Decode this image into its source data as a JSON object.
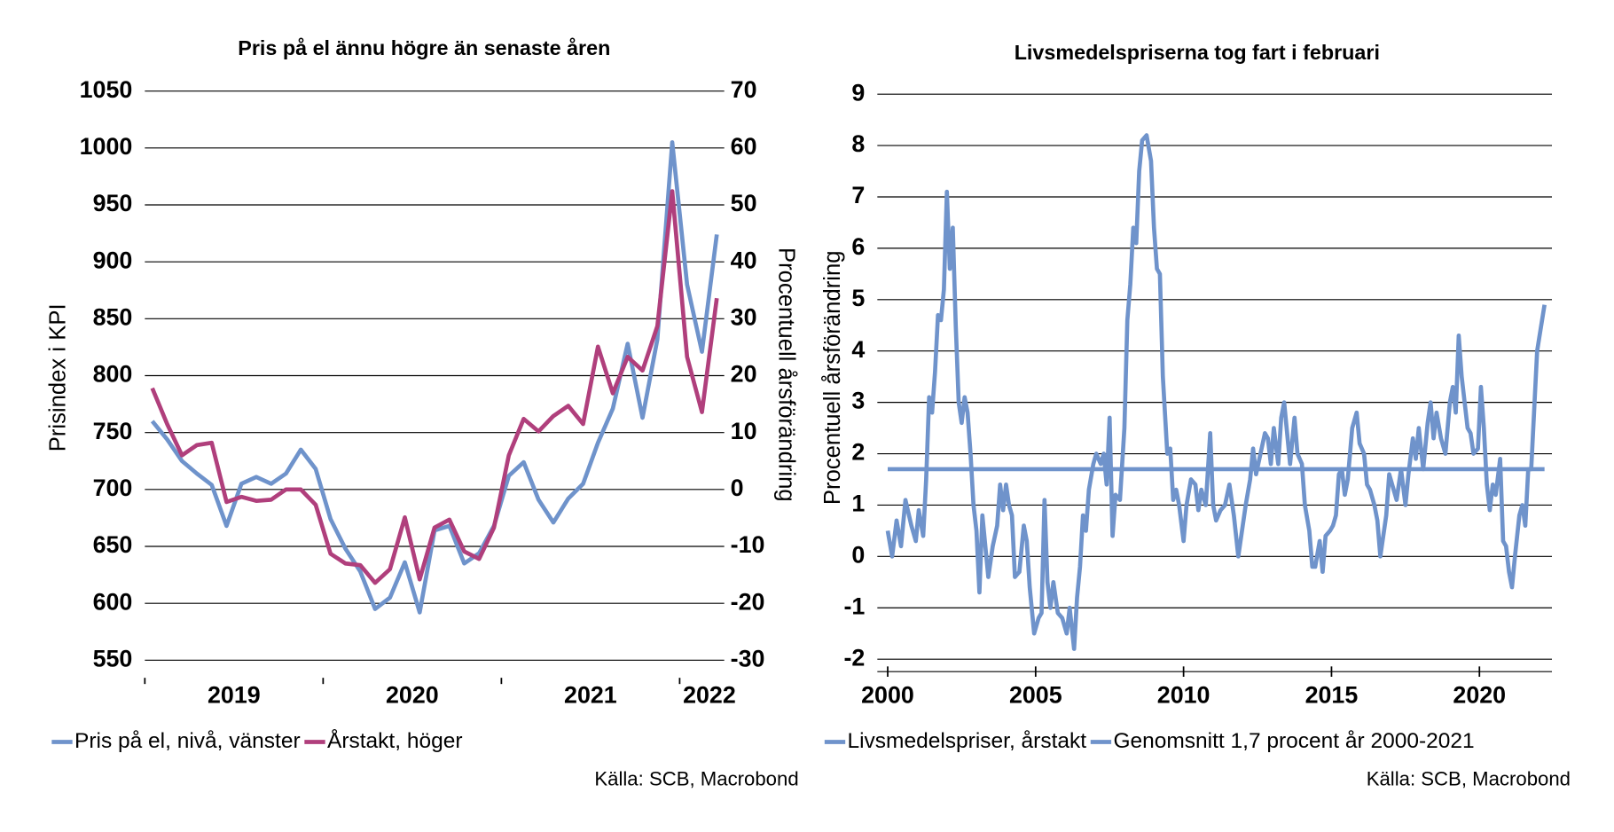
{
  "chart_data": [
    {
      "type": "line",
      "title": "Pris på el ännu högre än senaste åren",
      "categories": [
        null,
        null,
        null,
        null,
        null,
        "2019",
        null,
        null,
        null,
        null,
        null,
        null,
        null,
        null,
        null,
        null,
        null,
        "2020",
        null,
        null,
        null,
        null,
        null,
        null,
        null,
        null,
        null,
        null,
        null,
        "2021",
        null,
        null,
        null,
        null,
        null,
        null,
        null,
        "2022",
        null
      ],
      "ylabel": "Prisindex i KPI",
      "y2label": "Procentuell årsförändring",
      "ylim": [
        550,
        1050
      ],
      "yticks": [
        550,
        600,
        650,
        700,
        750,
        800,
        850,
        900,
        950,
        1000,
        1050
      ],
      "y2lim": [
        -30,
        70
      ],
      "y2ticks": [
        -30,
        -20,
        -10,
        0,
        10,
        20,
        30,
        40,
        50,
        60,
        70
      ],
      "grid": true,
      "series": [
        {
          "name": "Pris på el, nivå, vänster",
          "color": "#6f93cb",
          "values": [
            760,
            744,
            725,
            714,
            704,
            668,
            705,
            711,
            705,
            714,
            735,
            718,
            674,
            648,
            628,
            595,
            605,
            636,
            592,
            664,
            668,
            635,
            644,
            668,
            712,
            724,
            691,
            671,
            692,
            705,
            741,
            771,
            828,
            763,
            832,
            1005,
            880,
            821,
            924
          ]
        },
        {
          "name": "Årstakt, höger",
          "color": "#b03f7c",
          "axis": "y2",
          "values": [
            17.8,
            11.5,
            6,
            7.8,
            8.2,
            -2.2,
            -1.3,
            -2,
            -1.8,
            0,
            0,
            -2.7,
            -11.3,
            -13,
            -13.3,
            -16.4,
            -14,
            -4.9,
            -15.8,
            -6.7,
            -5.3,
            -10.9,
            -12.2,
            -6.7,
            6,
            12.4,
            10.2,
            12.9,
            14.7,
            11.5,
            25.1,
            16.9,
            23.3,
            20.9,
            28.7,
            52.4,
            23.3,
            13.6,
            33.6
          ]
        }
      ],
      "source": "Källa: SCB, Macrobond"
    },
    {
      "type": "line",
      "title": "Livsmedelspriserna tog fart i februari",
      "ylabel": "Procentuell årsförändring",
      "xlim": [
        2000,
        2022.45
      ],
      "xticks": [
        2000,
        2005,
        2010,
        2015,
        2020
      ],
      "ylim": [
        -2,
        9
      ],
      "yticks": [
        -2,
        -1,
        0,
        1,
        2,
        3,
        4,
        5,
        6,
        7,
        8,
        9
      ],
      "grid": true,
      "series": [
        {
          "name": "Livsmedelspriser, årstakt",
          "color": "#6f93cb",
          "x": [
            2000.0,
            2000.15,
            2000.3,
            2000.45,
            2000.6,
            2000.8,
            2000.95,
            2001.05,
            2001.2,
            2001.3,
            2001.4,
            2001.5,
            2001.6,
            2001.7,
            2001.8,
            2001.9,
            2002.0,
            2002.1,
            2002.2,
            2002.3,
            2002.4,
            2002.5,
            2002.6,
            2002.7,
            2002.8,
            2002.9,
            2003.0,
            2003.1,
            2003.2,
            2003.3,
            2003.4,
            2003.55,
            2003.7,
            2003.8,
            2003.9,
            2004.0,
            2004.1,
            2004.2,
            2004.3,
            2004.45,
            2004.6,
            2004.7,
            2004.8,
            2004.95,
            2005.1,
            2005.2,
            2005.3,
            2005.4,
            2005.5,
            2005.6,
            2005.75,
            2005.9,
            2006.05,
            2006.15,
            2006.3,
            2006.4,
            2006.5,
            2006.6,
            2006.7,
            2006.8,
            2006.95,
            2007.05,
            2007.2,
            2007.3,
            2007.4,
            2007.5,
            2007.6,
            2007.7,
            2007.85,
            2008.0,
            2008.1,
            2008.2,
            2008.3,
            2008.4,
            2008.5,
            2008.6,
            2008.75,
            2008.9,
            2009.0,
            2009.1,
            2009.2,
            2009.3,
            2009.45,
            2009.55,
            2009.65,
            2009.75,
            2009.85,
            2010.0,
            2010.1,
            2010.25,
            2010.4,
            2010.5,
            2010.6,
            2010.75,
            2010.9,
            2011.0,
            2011.1,
            2011.25,
            2011.4,
            2011.55,
            2011.7,
            2011.85,
            2011.95,
            2012.1,
            2012.25,
            2012.35,
            2012.45,
            2012.6,
            2012.75,
            2012.85,
            2012.95,
            2013.05,
            2013.2,
            2013.3,
            2013.4,
            2013.5,
            2013.6,
            2013.75,
            2013.85,
            2014.0,
            2014.1,
            2014.25,
            2014.35,
            2014.45,
            2014.6,
            2014.7,
            2014.8,
            2014.95,
            2015.05,
            2015.15,
            2015.25,
            2015.35,
            2015.45,
            2015.55,
            2015.7,
            2015.85,
            2015.95,
            2016.1,
            2016.2,
            2016.3,
            2016.45,
            2016.55,
            2016.65,
            2016.75,
            2016.85,
            2016.95,
            2017.1,
            2017.2,
            2017.35,
            2017.5,
            2017.6,
            2017.75,
            2017.85,
            2017.95,
            2018.1,
            2018.25,
            2018.35,
            2018.45,
            2018.55,
            2018.7,
            2018.85,
            2019.0,
            2019.1,
            2019.2,
            2019.3,
            2019.4,
            2019.5,
            2019.6,
            2019.7,
            2019.8,
            2019.95,
            2020.05,
            2020.15,
            2020.25,
            2020.35,
            2020.45,
            2020.55,
            2020.7,
            2020.8,
            2020.9,
            2021.0,
            2021.1,
            2021.2,
            2021.35,
            2021.45,
            2021.55,
            2021.65,
            2021.75,
            2021.95,
            2022.2
          ],
          "values": [
            0.5,
            0.0,
            0.7,
            0.2,
            1.1,
            0.6,
            0.3,
            0.9,
            0.4,
            1.5,
            3.1,
            2.8,
            3.6,
            4.7,
            4.6,
            5.2,
            7.1,
            5.6,
            6.4,
            4.5,
            3.0,
            2.6,
            3.1,
            2.8,
            2.0,
            1.0,
            0.5,
            -0.7,
            0.8,
            0.2,
            -0.4,
            0.2,
            0.6,
            1.4,
            0.9,
            1.4,
            1.0,
            0.8,
            -0.4,
            -0.3,
            0.6,
            0.3,
            -0.6,
            -1.5,
            -1.2,
            -1.1,
            1.1,
            -0.5,
            -1.0,
            -0.5,
            -1.1,
            -1.2,
            -1.5,
            -1.0,
            -1.8,
            -0.8,
            -0.2,
            0.8,
            0.5,
            1.3,
            1.8,
            2.0,
            1.8,
            2.0,
            1.4,
            2.7,
            0.4,
            1.2,
            1.1,
            2.5,
            4.6,
            5.3,
            6.4,
            6.1,
            7.5,
            8.1,
            8.2,
            7.7,
            6.4,
            5.6,
            5.5,
            3.5,
            2.0,
            2.1,
            1.1,
            1.3,
            1.0,
            0.3,
            1.0,
            1.5,
            1.4,
            0.9,
            1.3,
            1.0,
            2.4,
            1.0,
            0.7,
            0.9,
            1.0,
            1.4,
            0.8,
            0.0,
            0.4,
            1.0,
            1.5,
            2.1,
            1.6,
            2.0,
            2.4,
            2.3,
            1.8,
            2.5,
            1.8,
            2.7,
            3.0,
            2.4,
            1.8,
            2.7,
            2.0,
            1.8,
            1.0,
            0.5,
            -0.2,
            -0.2,
            0.3,
            -0.3,
            0.4,
            0.5,
            0.6,
            0.8,
            1.6,
            1.7,
            1.2,
            1.5,
            2.5,
            2.8,
            2.2,
            2.0,
            1.4,
            1.3,
            1.0,
            0.7,
            0.0,
            0.4,
            0.8,
            1.6,
            1.3,
            1.1,
            1.7,
            1.0,
            1.6,
            2.3,
            1.9,
            2.5,
            1.7,
            2.6,
            3.0,
            2.3,
            2.8,
            2.3,
            2.0,
            3.0,
            3.3,
            2.8,
            4.3,
            3.5,
            3.0,
            2.5,
            2.4,
            2.0,
            2.1,
            3.3,
            2.5,
            1.4,
            0.9,
            1.4,
            1.2,
            1.9,
            0.3,
            0.2,
            -0.3,
            -0.6,
            0.0,
            0.8,
            1.0,
            0.6,
            1.7,
            1.7,
            4.0,
            4.9
          ]
        },
        {
          "name": "Genomsnitt 1,7 procent år 2000-2021",
          "color": "#6f93cb",
          "x": [
            2000,
            2022.2
          ],
          "values": [
            1.7,
            1.7
          ]
        }
      ],
      "source": "Källa: SCB, Macrobond"
    }
  ]
}
